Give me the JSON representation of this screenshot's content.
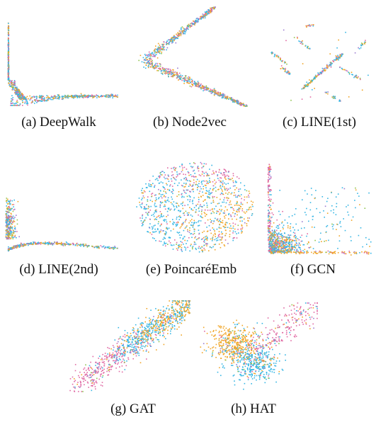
{
  "colors": [
    "#f0a526",
    "#36b6e4",
    "#e06aa4",
    "#9c7bd0",
    "#8fc44e"
  ],
  "chart_data": [
    {
      "id": "a",
      "type": "scatter",
      "caption": "(a)  DeepWalk",
      "pattern": "L-curve: dense vertical arm along left edge falling into a long horizontal arm at the bottom",
      "points": 900
    },
    {
      "id": "b",
      "type": "scatter",
      "caption": "(b)  Node2vec",
      "pattern": "V/chevron: upper arm rising to top-right, lower arm descending to bottom-right, vertex dense at left",
      "points": 900
    },
    {
      "id": "c",
      "type": "scatter",
      "caption": "(c)  LINE(1st)",
      "pattern": "sparse diagonal streaks and a prominent diagonal line through the center",
      "points": 320
    },
    {
      "id": "d",
      "type": "scatter",
      "caption": "(d)  LINE(2nd)",
      "pattern": "L-curve: short vertical cluster at left, long thin tail to the right",
      "points": 620
    },
    {
      "id": "e",
      "type": "scatter",
      "caption": "(e)  PoincaréEmb",
      "pattern": "roughly circular disk of mixed points, pink at top, orange on the right",
      "points": 1100
    },
    {
      "id": "f",
      "type": "scatter",
      "caption": "(f)  GCN",
      "pattern": "corner cluster at bottom-left with vertical spike on left edge and scattered points to the upper right",
      "points": 950
    },
    {
      "id": "g",
      "type": "scatter",
      "caption": "(g)  GAT",
      "pattern": "diagonal band from lower-left (pink) to upper-right (orange/blue)",
      "points": 1000
    },
    {
      "id": "h",
      "type": "scatter",
      "caption": "(h)  HAT",
      "pattern": "dense orange blob left, blue blob below, pink points scattered to upper right",
      "points": 1000
    }
  ]
}
